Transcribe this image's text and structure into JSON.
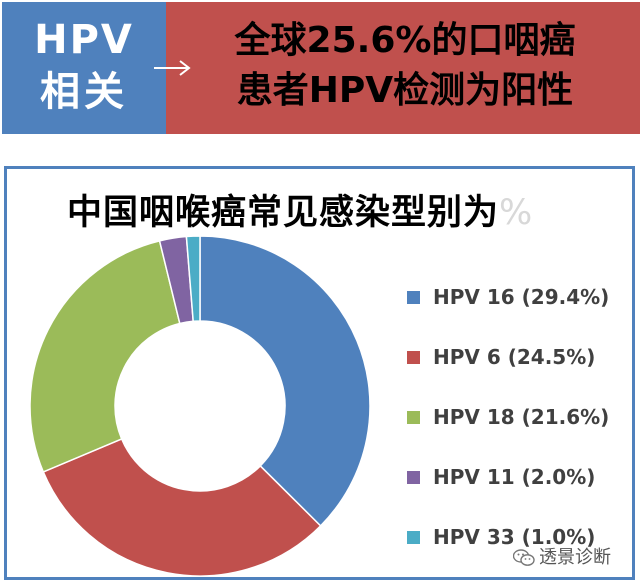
{
  "header": {
    "left_line1": "HPV",
    "left_line2": "相关",
    "right_line1": "全球25.6%的口咽癌",
    "right_line2": "患者HPV检测为阳性"
  },
  "chart_data": {
    "type": "pie",
    "title": "中国咽喉癌常见感染型别为",
    "title_suffix": "%",
    "donut": true,
    "legend_position": "right",
    "categories": [
      "HPV 16 (29.4%)",
      "HPV 6 (24.5%)",
      "HPV 18 (21.6%)",
      "HPV 11 (2.0%)",
      "HPV 33 (1.0%)"
    ],
    "values": [
      29.4,
      24.5,
      21.6,
      2.0,
      1.0
    ],
    "colors": [
      "#4F81BD",
      "#C0504D",
      "#9BBB59",
      "#8064A2",
      "#4BACC6"
    ]
  },
  "watermark": {
    "text": "透景诊断",
    "icon": "wechat-icon"
  },
  "colors": {
    "header_left": "#4F81BD",
    "header_right": "#C0504D",
    "panel_border": "#4F81BD"
  }
}
